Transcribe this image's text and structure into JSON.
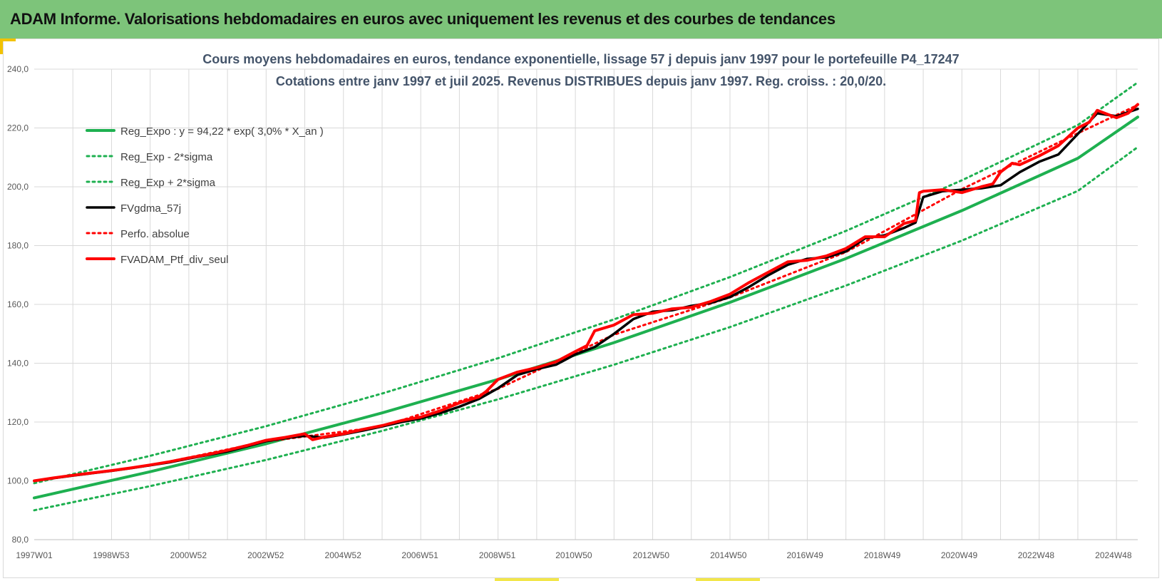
{
  "header": {
    "title": "ADAM Informe. Valorisations hebdomadaires en euros avec uniquement les revenus et des courbes de tendances"
  },
  "colors": {
    "header_bg": "#7dc47a",
    "reg_green": "#1eb050",
    "black": "#000000",
    "red": "#ff0000",
    "grid": "#d9d9d9"
  },
  "chart_data": {
    "type": "line",
    "title": "Cours moyens hebdomadaires  en euros, tendance exponentielle, lissage 57 j depuis janv 1997 pour le portefeuille P4_17247",
    "subtitle": "Cotations  entre janv 1997 et juil 2025. Revenus DISTRIBUES depuis janv 1997. Reg. croiss. : 20,0/20.",
    "xlabel": "",
    "ylabel": "",
    "x_range": [
      1997.0,
      2025.55
    ],
    "ylim": [
      80,
      240
    ],
    "y_ticks": [
      "80,0",
      "100,0",
      "120,0",
      "140,0",
      "160,0",
      "180,0",
      "200,0",
      "220,0",
      "240,0"
    ],
    "x_ticks": [
      {
        "label": "1997W01",
        "x": 1997.0
      },
      {
        "label": "1998W53",
        "x": 1998.99
      },
      {
        "label": "2000W52",
        "x": 2000.99
      },
      {
        "label": "2002W52",
        "x": 2002.99
      },
      {
        "label": "2004W52",
        "x": 2004.99
      },
      {
        "label": "2006W51",
        "x": 2006.98
      },
      {
        "label": "2008W51",
        "x": 2008.98
      },
      {
        "label": "2010W50",
        "x": 2010.96
      },
      {
        "label": "2012W50",
        "x": 2012.96
      },
      {
        "label": "2014W50",
        "x": 2014.96
      },
      {
        "label": "2016W49",
        "x": 2016.94
      },
      {
        "label": "2018W49",
        "x": 2018.94
      },
      {
        "label": "2020W49",
        "x": 2020.93
      },
      {
        "label": "2022W48",
        "x": 2022.92
      },
      {
        "label": "2024W48",
        "x": 2024.92
      }
    ],
    "grid": true,
    "legend_position": "top-left",
    "series": [
      {
        "name": "Reg_Expo : y = 94,22 *  exp( 3,0% *  X_an )",
        "style": "solid",
        "color": "#1eb050",
        "x": [
          1997.0,
          2000.0,
          2003.0,
          2006.0,
          2009.0,
          2012.0,
          2015.0,
          2018.0,
          2021.0,
          2024.0,
          2025.55
        ],
        "values": [
          94.2,
          103.1,
          112.6,
          123.1,
          134.5,
          147.0,
          160.7,
          175.6,
          191.9,
          209.7,
          223.7
        ]
      },
      {
        "name": "Reg_Exp - 2*sigma",
        "style": "dotted",
        "color": "#1eb050",
        "x": [
          1997.0,
          2000.0,
          2003.0,
          2006.0,
          2009.0,
          2012.0,
          2015.0,
          2018.0,
          2021.0,
          2024.0,
          2025.55
        ],
        "values": [
          90.0,
          98.2,
          107.1,
          117.0,
          127.7,
          139.5,
          152.3,
          166.4,
          181.7,
          198.6,
          213.5
        ]
      },
      {
        "name": "Reg_Exp + 2*sigma",
        "style": "dotted",
        "color": "#1eb050",
        "x": [
          1997.0,
          2000.0,
          2003.0,
          2006.0,
          2009.0,
          2012.0,
          2015.0,
          2018.0,
          2021.0,
          2024.0,
          2025.55
        ],
        "values": [
          99.2,
          108.5,
          118.6,
          129.7,
          141.7,
          154.9,
          169.3,
          185.0,
          202.2,
          221.0,
          235.5
        ]
      },
      {
        "name": "FVgdma_57j",
        "style": "solid",
        "color": "#000000",
        "x": [
          1997.0,
          1997.5,
          1998.0,
          1998.5,
          1999.0,
          1999.5,
          2000.0,
          2000.5,
          2001.0,
          2001.5,
          2002.0,
          2002.5,
          2003.0,
          2003.5,
          2004.0,
          2004.5,
          2005.0,
          2005.5,
          2006.0,
          2006.5,
          2007.0,
          2007.5,
          2008.0,
          2008.5,
          2009.0,
          2009.5,
          2010.0,
          2010.5,
          2011.0,
          2011.5,
          2012.0,
          2012.5,
          2013.0,
          2013.5,
          2014.0,
          2014.5,
          2015.0,
          2015.5,
          2016.0,
          2016.5,
          2017.0,
          2017.5,
          2018.0,
          2018.5,
          2019.0,
          2019.5,
          2019.8,
          2020.0,
          2020.5,
          2021.0,
          2021.5,
          2022.0,
          2022.5,
          2023.0,
          2023.5,
          2024.0,
          2024.5,
          2025.0,
          2025.55
        ],
        "values": [
          100.0,
          100.9,
          101.8,
          102.6,
          103.4,
          104.3,
          105.3,
          106.3,
          107.6,
          108.8,
          110.0,
          111.7,
          113.5,
          114.5,
          115.3,
          114.7,
          115.8,
          117.1,
          118.5,
          120.0,
          121.2,
          123.0,
          125.2,
          127.8,
          131.5,
          136.0,
          138.0,
          139.5,
          143.0,
          145.5,
          150.0,
          155.0,
          157.5,
          158.0,
          159.5,
          160.5,
          162.5,
          166.0,
          170.0,
          173.5,
          175.5,
          176.0,
          178.0,
          182.5,
          183.5,
          186.0,
          187.8,
          196.5,
          198.5,
          199.0,
          199.5,
          200.5,
          205.0,
          208.5,
          211.0,
          218.0,
          225.0,
          224.0,
          226.5
        ]
      },
      {
        "name": "Perfo. absolue",
        "style": "dotted",
        "color": "#ff0000",
        "x": [
          1997.0,
          2000.0,
          2003.0,
          2006.0,
          2009.0,
          2012.0,
          2015.0,
          2018.0,
          2021.0,
          2024.0,
          2025.55
        ],
        "values": [
          100.0,
          105.2,
          113.4,
          118.4,
          131.3,
          149.7,
          162.4,
          177.8,
          199.2,
          218.2,
          227.8
        ]
      },
      {
        "name": "FVADAM_Ptf_div_seul",
        "style": "solid",
        "color": "#ff0000",
        "x": [
          1997.0,
          1997.5,
          1998.0,
          1998.5,
          1999.0,
          1999.5,
          2000.0,
          2000.5,
          2001.0,
          2001.5,
          2002.0,
          2002.5,
          2003.0,
          2003.5,
          2004.0,
          2004.2,
          2004.5,
          2005.0,
          2005.5,
          2006.0,
          2006.5,
          2007.0,
          2007.5,
          2008.0,
          2008.5,
          2008.7,
          2009.0,
          2009.5,
          2010.0,
          2010.5,
          2011.0,
          2011.3,
          2011.5,
          2012.0,
          2012.5,
          2013.0,
          2013.5,
          2014.0,
          2014.5,
          2015.0,
          2015.5,
          2016.0,
          2016.5,
          2017.0,
          2017.5,
          2018.0,
          2018.5,
          2019.0,
          2019.5,
          2019.8,
          2019.9,
          2020.0,
          2020.5,
          2021.0,
          2021.5,
          2021.8,
          2022.0,
          2022.3,
          2022.5,
          2023.0,
          2023.5,
          2024.0,
          2024.3,
          2024.5,
          2025.0,
          2025.3,
          2025.55
        ],
        "values": [
          100.0,
          101.0,
          101.9,
          102.7,
          103.5,
          104.4,
          105.4,
          106.5,
          107.8,
          109.0,
          110.4,
          112.0,
          113.8,
          114.8,
          116.0,
          114.0,
          114.9,
          116.0,
          117.5,
          118.8,
          120.5,
          121.7,
          123.8,
          126.5,
          128.5,
          130.5,
          134.5,
          137.0,
          138.5,
          140.5,
          144.0,
          146.0,
          151.0,
          153.0,
          156.5,
          157.0,
          158.5,
          159.0,
          161.0,
          163.5,
          167.5,
          171.0,
          174.5,
          175.0,
          176.5,
          179.0,
          183.0,
          183.0,
          187.5,
          188.5,
          198.0,
          198.5,
          199.0,
          198.0,
          200.0,
          201.0,
          205.0,
          208.0,
          207.5,
          210.5,
          214.0,
          220.0,
          222.0,
          226.0,
          223.5,
          225.0,
          228.0
        ]
      }
    ]
  }
}
